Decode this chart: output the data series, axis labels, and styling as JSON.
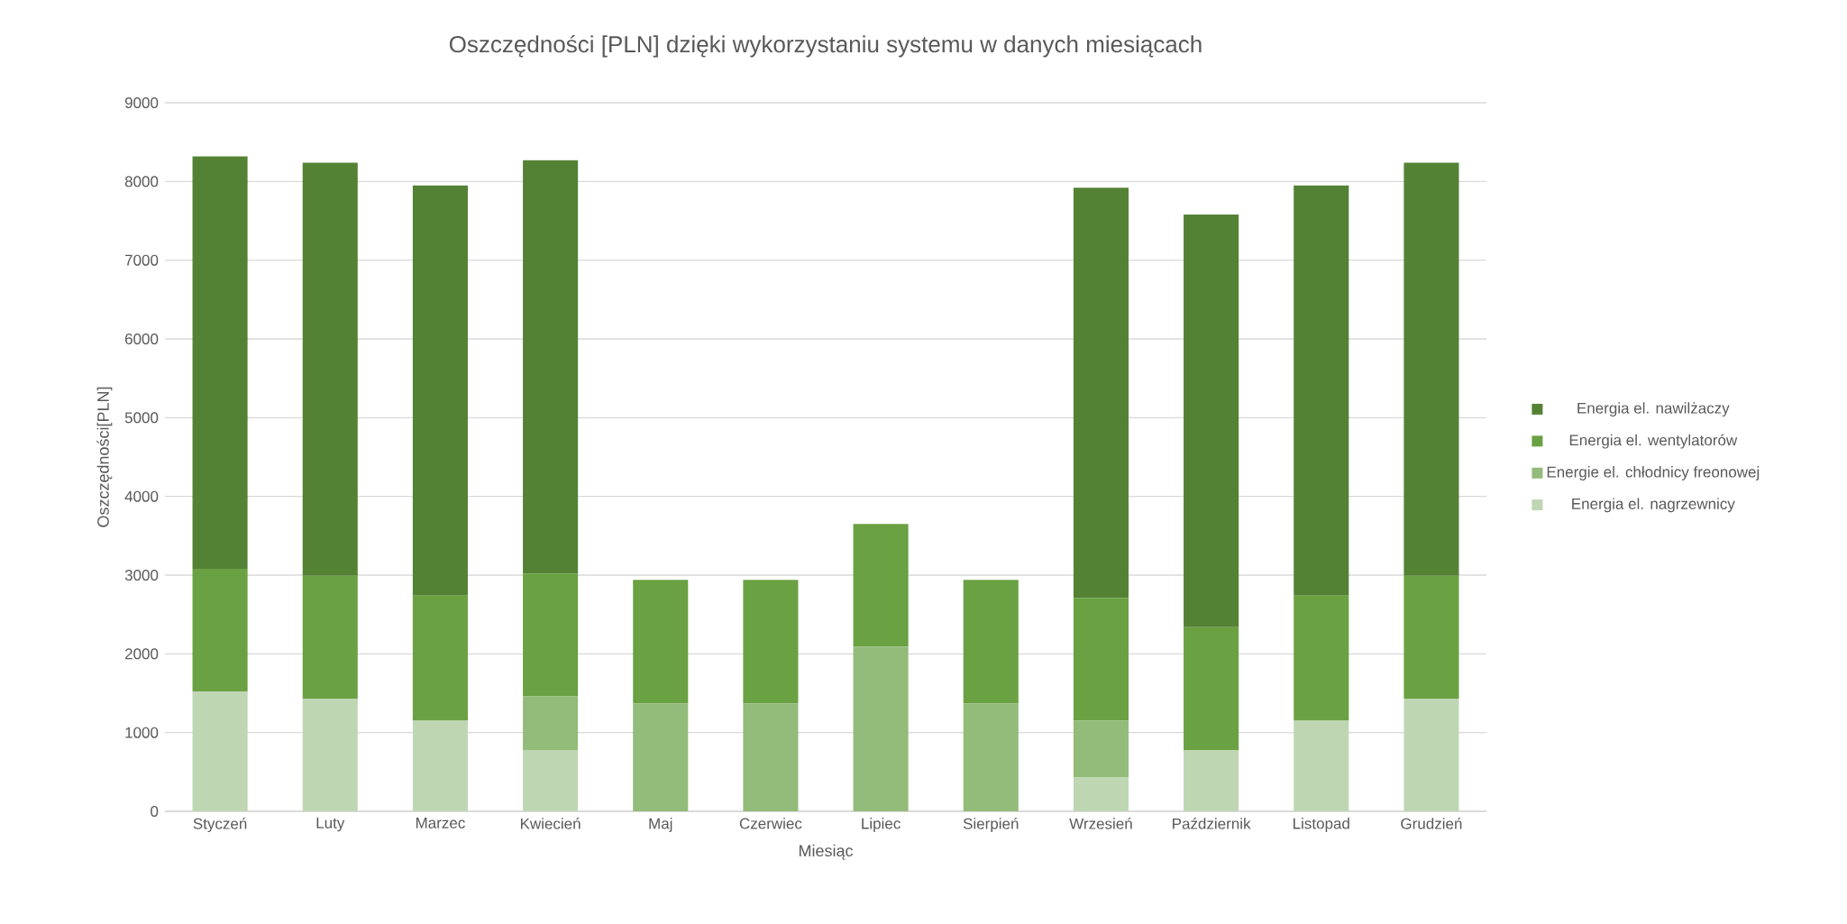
{
  "chart_data": {
    "type": "bar",
    "stacked": true,
    "title": "Oszczędności [PLN] dzięki wykorzystaniu systemu w danych miesiącach",
    "xlabel": "Miesiąc",
    "ylabel": "Oszczędności[PLN]",
    "categories": [
      "Styczeń",
      "Luty",
      "Marzec",
      "Kwiecień",
      "Maj",
      "Czerwiec",
      "Lipiec",
      "Sierpień",
      "Wrzesień",
      "Październik",
      "Listopad",
      "Grudzień"
    ],
    "series": [
      {
        "name": "Energia el. nagrzewnicy",
        "color": "#bfd6b3",
        "values": [
          1520,
          1430,
          1150,
          780,
          null,
          null,
          null,
          null,
          430,
          780,
          1150,
          1430
        ]
      },
      {
        "name": "Energie el. chłodnicy freonowej",
        "color": "#93bb79",
        "values": [
          null,
          null,
          null,
          680,
          1370,
          1370,
          2090,
          1370,
          720,
          null,
          null,
          null
        ]
      },
      {
        "name": "Energia el. wentylatorów",
        "color": "#6aa142",
        "values": [
          1560,
          1560,
          1590,
          1560,
          1570,
          1570,
          1560,
          1570,
          1560,
          1560,
          1590,
          1560
        ]
      },
      {
        "name": "Energia el. nawilżaczy",
        "color": "#548235",
        "values": [
          5240,
          5250,
          5210,
          5250,
          null,
          null,
          null,
          null,
          5210,
          5240,
          5210,
          5250
        ]
      }
    ],
    "ylim": [
      0,
      9000
    ],
    "yticks": [
      0,
      1000,
      2000,
      3000,
      4000,
      5000,
      6000,
      7000,
      8000,
      9000
    ],
    "grid": "y",
    "legend": "right"
  }
}
